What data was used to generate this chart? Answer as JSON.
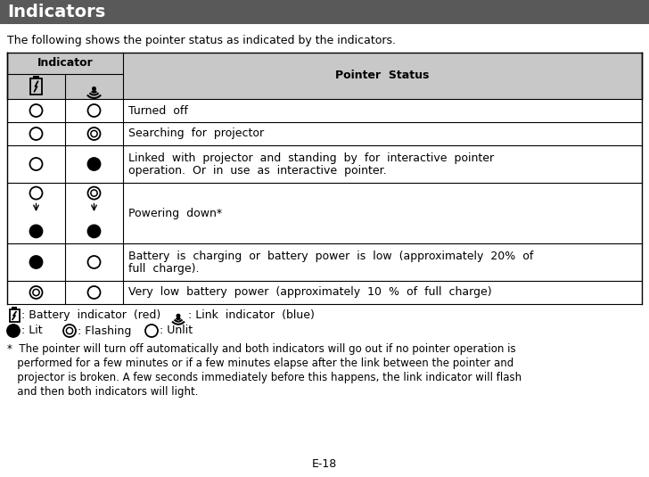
{
  "title": "Indicators",
  "title_bg": "#595959",
  "title_fg": "#ffffff",
  "intro_text": "The following shows the pointer status as indicated by the indicators.",
  "table_header_bg": "#c8c8c8",
  "table_row_bg": "#ffffff",
  "table_border": "#000000",
  "rows": [
    {
      "bat_symbol": "unlit",
      "link_symbol": "unlit",
      "status_lines": [
        "Turned  off"
      ]
    },
    {
      "bat_symbol": "unlit",
      "link_symbol": "flashing",
      "status_lines": [
        "Searching  for  projector"
      ]
    },
    {
      "bat_symbol": "unlit",
      "link_symbol": "lit",
      "status_lines": [
        "Linked  with  projector  and  standing  by  for  interactive  pointer",
        "operation.  Or  in  use  as  interactive  pointer."
      ]
    },
    {
      "bat_symbol": "unlit_to_lit",
      "link_symbol": "flashing_to_lit",
      "status_lines": [
        "Powering  down*"
      ]
    },
    {
      "bat_symbol": "lit",
      "link_symbol": "unlit",
      "status_lines": [
        "Battery  is  charging  or  battery  power  is  low  (approximately  20%  of",
        "full  charge)."
      ]
    },
    {
      "bat_symbol": "flashing",
      "link_symbol": "unlit",
      "status_lines": [
        "Very  low  battery  power  (approximately  10  %  of  full  charge)"
      ]
    }
  ],
  "page_number": "E-18",
  "font_size": 9.0,
  "bg_color": "#ffffff"
}
